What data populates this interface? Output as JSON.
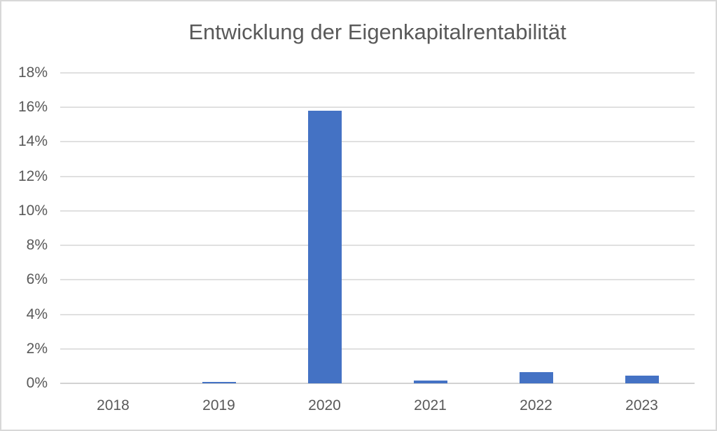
{
  "chart_data": {
    "type": "bar",
    "title": "Entwicklung der Eigenkapitalrentabilität",
    "categories": [
      "2018",
      "2019",
      "2020",
      "2021",
      "2022",
      "2023"
    ],
    "values": [
      0.0,
      0.1,
      15.8,
      0.15,
      0.65,
      0.45
    ],
    "unit": "%",
    "xlabel": "",
    "ylabel": "",
    "ylim": [
      0,
      18
    ],
    "ytick_step": 2,
    "ytick_labels": [
      "0%",
      "2%",
      "4%",
      "6%",
      "8%",
      "10%",
      "12%",
      "14%",
      "16%",
      "18%"
    ],
    "grid": true,
    "legend_position": "none",
    "bar_color": "#4472C4"
  },
  "colors": {
    "bar": "#4472C4",
    "text": "#595959",
    "gridline": "#E0E0E0",
    "axis_line": "#D2D2D2",
    "frame_border": "#D8D8D8",
    "background": "#FFFFFF"
  }
}
